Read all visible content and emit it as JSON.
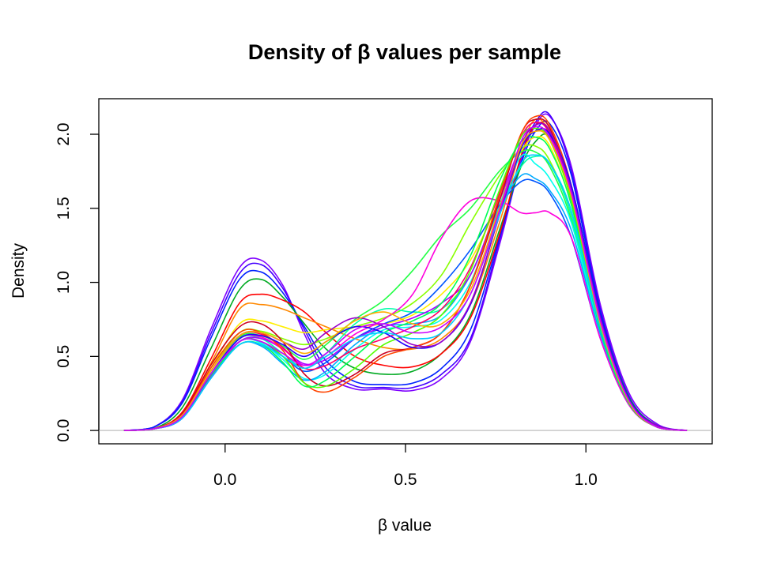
{
  "chart_data": {
    "type": "line",
    "title": "Density of β values per sample",
    "xlabel": "β value",
    "ylabel": "Density",
    "xlim": [
      -0.35,
      1.35
    ],
    "ylim": [
      -0.09,
      2.24
    ],
    "x_ticks": [
      0.0,
      0.5,
      1.0
    ],
    "x_tick_labels": [
      "0.0",
      "0.5",
      "1.0"
    ],
    "y_ticks": [
      0.0,
      0.5,
      1.0,
      1.5,
      2.0
    ],
    "y_tick_labels": [
      "0.0",
      "0.5",
      "1.0",
      "1.5",
      "2.0"
    ],
    "baseline": 0,
    "baseline_color": "#bebebe",
    "grid": false,
    "legend": false,
    "x": [
      -0.28,
      -0.2,
      -0.12,
      -0.04,
      0.04,
      0.1,
      0.16,
      0.22,
      0.28,
      0.36,
      0.44,
      0.52,
      0.6,
      0.68,
      0.76,
      0.82,
      0.86,
      0.9,
      0.96,
      1.04,
      1.12,
      1.2,
      1.28
    ],
    "series": [
      {
        "color": "#7f00ff",
        "values": [
          0,
          0.02,
          0.2,
          0.68,
          1.1,
          1.15,
          0.98,
          0.65,
          0.38,
          0.28,
          0.28,
          0.27,
          0.35,
          0.6,
          1.25,
          1.82,
          2.06,
          2.12,
          1.78,
          0.85,
          0.25,
          0.04,
          0
        ]
      },
      {
        "color": "#4400ff",
        "values": [
          0,
          0.02,
          0.19,
          0.65,
          1.06,
          1.12,
          0.96,
          0.68,
          0.42,
          0.3,
          0.29,
          0.29,
          0.38,
          0.62,
          1.28,
          1.85,
          2.08,
          2.13,
          1.75,
          0.82,
          0.23,
          0.03,
          0
        ]
      },
      {
        "color": "#0022ff",
        "values": [
          0,
          0.02,
          0.18,
          0.62,
          1.02,
          1.07,
          0.93,
          0.7,
          0.47,
          0.33,
          0.31,
          0.32,
          0.42,
          0.68,
          1.3,
          1.8,
          2.02,
          2.07,
          1.72,
          0.8,
          0.22,
          0.03,
          0
        ]
      },
      {
        "color": "#00aa22",
        "values": [
          0,
          0.01,
          0.15,
          0.55,
          0.95,
          1.02,
          0.9,
          0.72,
          0.55,
          0.42,
          0.38,
          0.4,
          0.52,
          0.78,
          1.35,
          1.78,
          1.95,
          1.98,
          1.65,
          0.78,
          0.22,
          0.03,
          0
        ]
      },
      {
        "color": "#ff0000",
        "values": [
          0,
          0.01,
          0.12,
          0.48,
          0.86,
          0.92,
          0.88,
          0.8,
          0.66,
          0.5,
          0.44,
          0.43,
          0.52,
          0.76,
          1.32,
          1.85,
          2.06,
          2.02,
          1.6,
          0.72,
          0.2,
          0.02,
          0
        ]
      },
      {
        "color": "#ff8800",
        "values": [
          0,
          0.01,
          0.11,
          0.45,
          0.82,
          0.85,
          0.82,
          0.76,
          0.7,
          0.62,
          0.56,
          0.55,
          0.62,
          0.85,
          1.4,
          1.9,
          2.1,
          2.0,
          1.55,
          0.7,
          0.19,
          0.02,
          0
        ]
      },
      {
        "color": "#ffee00",
        "values": [
          0,
          0.01,
          0.1,
          0.42,
          0.72,
          0.74,
          0.7,
          0.66,
          0.68,
          0.7,
          0.72,
          0.78,
          0.92,
          1.15,
          1.55,
          1.88,
          1.98,
          1.92,
          1.52,
          0.7,
          0.19,
          0.02,
          0
        ]
      },
      {
        "color": "#88ff00",
        "values": [
          0,
          0.01,
          0.1,
          0.4,
          0.66,
          0.67,
          0.62,
          0.58,
          0.62,
          0.7,
          0.76,
          0.86,
          1.05,
          1.4,
          1.72,
          1.9,
          1.92,
          1.82,
          1.45,
          0.68,
          0.19,
          0.02,
          0
        ]
      },
      {
        "color": "#22ff44",
        "values": [
          0,
          0.01,
          0.09,
          0.38,
          0.63,
          0.64,
          0.57,
          0.48,
          0.58,
          0.75,
          0.88,
          1.08,
          1.32,
          1.5,
          1.75,
          1.88,
          1.88,
          1.78,
          1.42,
          0.66,
          0.18,
          0.02,
          0
        ]
      },
      {
        "color": "#00ffaa",
        "values": [
          0,
          0.01,
          0.09,
          0.38,
          0.62,
          0.62,
          0.52,
          0.42,
          0.52,
          0.72,
          0.82,
          0.8,
          0.82,
          1.05,
          1.5,
          1.78,
          1.85,
          1.8,
          1.45,
          0.68,
          0.19,
          0.02,
          0
        ]
      },
      {
        "color": "#00ffee",
        "values": [
          0,
          0.01,
          0.08,
          0.36,
          0.6,
          0.59,
          0.48,
          0.35,
          0.38,
          0.55,
          0.68,
          0.7,
          0.75,
          1.0,
          1.52,
          1.85,
          1.8,
          1.7,
          1.4,
          0.66,
          0.18,
          0.02,
          0
        ]
      },
      {
        "color": "#00aaff",
        "values": [
          0,
          0.01,
          0.08,
          0.35,
          0.58,
          0.57,
          0.45,
          0.34,
          0.4,
          0.58,
          0.7,
          0.72,
          0.78,
          1.05,
          1.5,
          1.72,
          1.7,
          1.62,
          1.35,
          0.65,
          0.18,
          0.02,
          0
        ]
      },
      {
        "color": "#0055ff",
        "values": [
          0,
          0.01,
          0.08,
          0.36,
          0.6,
          0.6,
          0.5,
          0.4,
          0.46,
          0.62,
          0.72,
          0.8,
          0.98,
          1.22,
          1.52,
          1.68,
          1.68,
          1.6,
          1.3,
          0.62,
          0.17,
          0.02,
          0
        ]
      },
      {
        "color": "#aa00ff",
        "values": [
          0,
          0.01,
          0.08,
          0.36,
          0.6,
          0.62,
          0.55,
          0.45,
          0.48,
          0.62,
          0.7,
          0.76,
          0.86,
          1.05,
          1.55,
          1.92,
          2.02,
          1.98,
          1.6,
          0.75,
          0.2,
          0.02,
          0
        ]
      },
      {
        "color": "#ff00dd",
        "values": [
          0,
          0.01,
          0.09,
          0.38,
          0.62,
          0.63,
          0.55,
          0.44,
          0.5,
          0.65,
          0.75,
          0.92,
          1.3,
          1.55,
          1.55,
          1.47,
          1.47,
          1.47,
          1.3,
          0.62,
          0.17,
          0.02,
          0
        ]
      },
      {
        "color": "#ff0066",
        "values": [
          0,
          0.01,
          0.1,
          0.4,
          0.64,
          0.65,
          0.56,
          0.42,
          0.44,
          0.55,
          0.62,
          0.7,
          0.82,
          1.1,
          1.6,
          1.98,
          2.08,
          2.0,
          1.58,
          0.7,
          0.18,
          0.02,
          0
        ]
      },
      {
        "color": "#cc0022",
        "values": [
          0,
          0.01,
          0.11,
          0.44,
          0.7,
          0.72,
          0.6,
          0.38,
          0.3,
          0.38,
          0.52,
          0.56,
          0.66,
          0.98,
          1.55,
          2.0,
          2.1,
          2.04,
          1.62,
          0.72,
          0.19,
          0.02,
          0
        ]
      },
      {
        "color": "#ff4400",
        "values": [
          0,
          0.01,
          0.1,
          0.42,
          0.66,
          0.66,
          0.54,
          0.32,
          0.26,
          0.36,
          0.5,
          0.56,
          0.66,
          0.98,
          1.58,
          2.0,
          2.12,
          2.06,
          1.65,
          0.74,
          0.2,
          0.02,
          0
        ]
      },
      {
        "color": "#55ff00",
        "values": [
          0,
          0.01,
          0.09,
          0.38,
          0.6,
          0.6,
          0.5,
          0.32,
          0.3,
          0.42,
          0.58,
          0.66,
          0.78,
          1.08,
          1.62,
          1.98,
          2.04,
          1.96,
          1.55,
          0.7,
          0.19,
          0.02,
          0
        ]
      },
      {
        "color": "#00ff55",
        "values": [
          0,
          0.01,
          0.09,
          0.37,
          0.58,
          0.58,
          0.46,
          0.3,
          0.34,
          0.5,
          0.66,
          0.74,
          0.86,
          1.18,
          1.68,
          1.95,
          1.98,
          1.9,
          1.52,
          0.68,
          0.18,
          0.02,
          0
        ]
      },
      {
        "color": "#2200ff",
        "values": [
          0,
          0.01,
          0.09,
          0.38,
          0.62,
          0.64,
          0.58,
          0.5,
          0.6,
          0.7,
          0.66,
          0.56,
          0.6,
          0.85,
          1.45,
          1.9,
          2.02,
          2.0,
          1.65,
          0.78,
          0.21,
          0.03,
          0
        ]
      },
      {
        "color": "#9900cc",
        "values": [
          0,
          0.01,
          0.1,
          0.4,
          0.64,
          0.66,
          0.6,
          0.55,
          0.66,
          0.76,
          0.7,
          0.58,
          0.6,
          0.86,
          1.45,
          1.92,
          2.06,
          2.02,
          1.62,
          0.76,
          0.2,
          0.03,
          0
        ]
      },
      {
        "color": "#00ccff",
        "values": [
          0,
          0.01,
          0.08,
          0.35,
          0.58,
          0.58,
          0.5,
          0.42,
          0.5,
          0.62,
          0.66,
          0.62,
          0.66,
          0.92,
          1.45,
          1.8,
          1.86,
          1.8,
          1.48,
          0.7,
          0.19,
          0.02,
          0
        ]
      },
      {
        "color": "#ffaa00",
        "values": [
          0,
          0.01,
          0.1,
          0.4,
          0.64,
          0.66,
          0.6,
          0.52,
          0.6,
          0.74,
          0.8,
          0.72,
          0.72,
          0.95,
          1.5,
          1.92,
          2.02,
          1.96,
          1.58,
          0.72,
          0.19,
          0.02,
          0
        ]
      },
      {
        "color": "#cc00ff",
        "values": [
          0,
          0.01,
          0.09,
          0.38,
          0.6,
          0.6,
          0.52,
          0.44,
          0.52,
          0.68,
          0.72,
          0.66,
          0.7,
          0.92,
          1.48,
          1.95,
          2.05,
          1.98,
          1.6,
          0.74,
          0.2,
          0.02,
          0
        ]
      }
    ]
  }
}
